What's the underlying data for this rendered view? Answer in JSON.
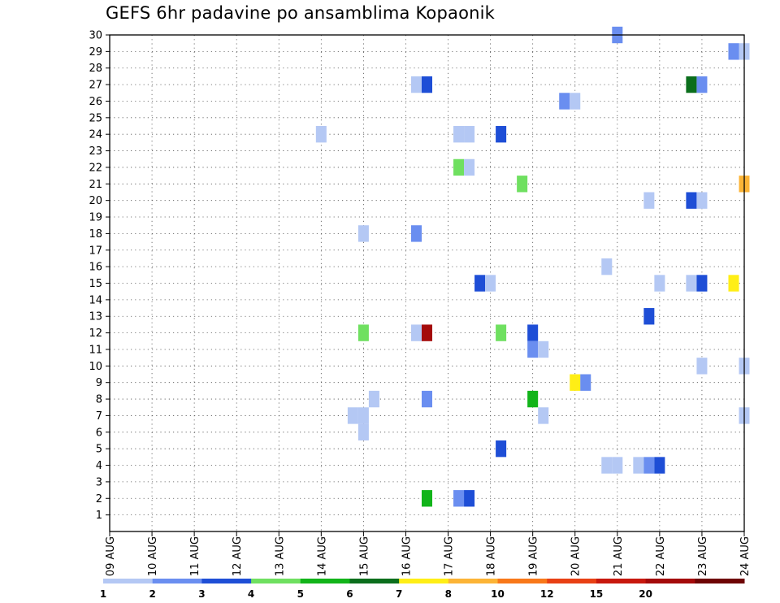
{
  "chart_data": {
    "type": "heatmap",
    "title": "GEFS 6hr padavine po ansamblima Kopaonik",
    "xlabel": "",
    "ylabel": "",
    "x_tick_labels": [
      "09 AUG",
      "10 AUG",
      "11 AUG",
      "12 AUG",
      "13 AUG",
      "14 AUG",
      "15 AUG",
      "16 AUG",
      "17 AUG",
      "18 AUG",
      "19 AUG",
      "20 AUG",
      "21 AUG",
      "22 AUG",
      "23 AUG",
      "24 AUG"
    ],
    "y_tick_labels": [
      "1",
      "2",
      "3",
      "4",
      "5",
      "6",
      "7",
      "8",
      "9",
      "10",
      "11",
      "12",
      "13",
      "14",
      "15",
      "16",
      "17",
      "18",
      "19",
      "20",
      "21",
      "22",
      "23",
      "24",
      "25",
      "26",
      "27",
      "28",
      "29",
      "30"
    ],
    "ylim": [
      0,
      30
    ],
    "xlim": [
      "09 AUG",
      "24 AUG"
    ],
    "grid": true,
    "colorbar": {
      "bins": [
        {
          "color": "#b4c8f4"
        },
        {
          "color": "#6a8ef0"
        },
        {
          "color": "#1e4ed6"
        },
        {
          "color": "#6fe060"
        },
        {
          "color": "#12b41a"
        },
        {
          "color": "#0b6e1c"
        },
        {
          "color": "#ffee16"
        },
        {
          "color": "#fcb436"
        },
        {
          "color": "#f8781a"
        },
        {
          "color": "#e84014"
        },
        {
          "color": "#c8180e"
        },
        {
          "color": "#a40a0a"
        },
        {
          "color": "#6e0404"
        }
      ],
      "labels": [
        "1",
        "2",
        "3",
        "4",
        "5",
        "6",
        "7",
        "8",
        "10",
        "12",
        "15",
        "20"
      ]
    },
    "cells_note": "member: ensemble member (y), day: days from 09 AUG 00 UTC (x), v: precipitation class",
    "cells": [
      {
        "member": 30,
        "day": 12.0,
        "v": 2
      },
      {
        "member": 29,
        "day": 14.75,
        "v": 2
      },
      {
        "member": 29,
        "day": 15.0,
        "v": 1
      },
      {
        "member": 27,
        "day": 7.25,
        "v": 1
      },
      {
        "member": 27,
        "day": 7.5,
        "v": 3
      },
      {
        "member": 27,
        "day": 13.75,
        "v": 6
      },
      {
        "member": 27,
        "day": 14.0,
        "v": 2
      },
      {
        "member": 26,
        "day": 10.75,
        "v": 2
      },
      {
        "member": 26,
        "day": 11.0,
        "v": 1
      },
      {
        "member": 24,
        "day": 5.0,
        "v": 1
      },
      {
        "member": 24,
        "day": 8.25,
        "v": 1
      },
      {
        "member": 24,
        "day": 8.5,
        "v": 1
      },
      {
        "member": 24,
        "day": 9.25,
        "v": 3
      },
      {
        "member": 22,
        "day": 8.25,
        "v": 4
      },
      {
        "member": 22,
        "day": 8.5,
        "v": 1
      },
      {
        "member": 21,
        "day": 9.75,
        "v": 4
      },
      {
        "member": 21,
        "day": 15.0,
        "v": 8
      },
      {
        "member": 20,
        "day": 12.75,
        "v": 1
      },
      {
        "member": 20,
        "day": 13.75,
        "v": 3
      },
      {
        "member": 20,
        "day": 14.0,
        "v": 1
      },
      {
        "member": 18,
        "day": 6.0,
        "v": 1
      },
      {
        "member": 18,
        "day": 7.25,
        "v": 2
      },
      {
        "member": 16,
        "day": 11.75,
        "v": 1
      },
      {
        "member": 15,
        "day": 13.0,
        "v": 1
      },
      {
        "member": 15,
        "day": 8.75,
        "v": 3
      },
      {
        "member": 15,
        "day": 9.0,
        "v": 1
      },
      {
        "member": 15,
        "day": 13.75,
        "v": 1
      },
      {
        "member": 15,
        "day": 14.0,
        "v": 3
      },
      {
        "member": 15,
        "day": 14.75,
        "v": 7
      },
      {
        "member": 13,
        "day": 12.75,
        "v": 3
      },
      {
        "member": 12,
        "day": 6.0,
        "v": 4
      },
      {
        "member": 12,
        "day": 7.25,
        "v": 1
      },
      {
        "member": 12,
        "day": 7.5,
        "v": 12
      },
      {
        "member": 12,
        "day": 9.25,
        "v": 4
      },
      {
        "member": 12,
        "day": 10.0,
        "v": 3
      },
      {
        "member": 11,
        "day": 10.0,
        "v": 2
      },
      {
        "member": 11,
        "day": 10.25,
        "v": 1
      },
      {
        "member": 10,
        "day": 14.0,
        "v": 1
      },
      {
        "member": 10,
        "day": 15.0,
        "v": 1
      },
      {
        "member": 9,
        "day": 11.0,
        "v": 7
      },
      {
        "member": 9,
        "day": 11.25,
        "v": 2
      },
      {
        "member": 8,
        "day": 6.25,
        "v": 1
      },
      {
        "member": 8,
        "day": 7.5,
        "v": 2
      },
      {
        "member": 8,
        "day": 10.0,
        "v": 5
      },
      {
        "member": 7,
        "day": 5.75,
        "v": 1
      },
      {
        "member": 7,
        "day": 6.0,
        "v": 1
      },
      {
        "member": 7,
        "day": 10.25,
        "v": 1
      },
      {
        "member": 7,
        "day": 15.0,
        "v": 1
      },
      {
        "member": 6,
        "day": 6.0,
        "v": 1
      },
      {
        "member": 5,
        "day": 9.25,
        "v": 3
      },
      {
        "member": 4,
        "day": 11.75,
        "v": 1
      },
      {
        "member": 4,
        "day": 12.0,
        "v": 1
      },
      {
        "member": 4,
        "day": 12.5,
        "v": 1
      },
      {
        "member": 4,
        "day": 12.75,
        "v": 2
      },
      {
        "member": 4,
        "day": 13.0,
        "v": 3
      },
      {
        "member": 2,
        "day": 7.5,
        "v": 5
      },
      {
        "member": 2,
        "day": 8.25,
        "v": 2
      },
      {
        "member": 2,
        "day": 8.5,
        "v": 3
      }
    ]
  }
}
